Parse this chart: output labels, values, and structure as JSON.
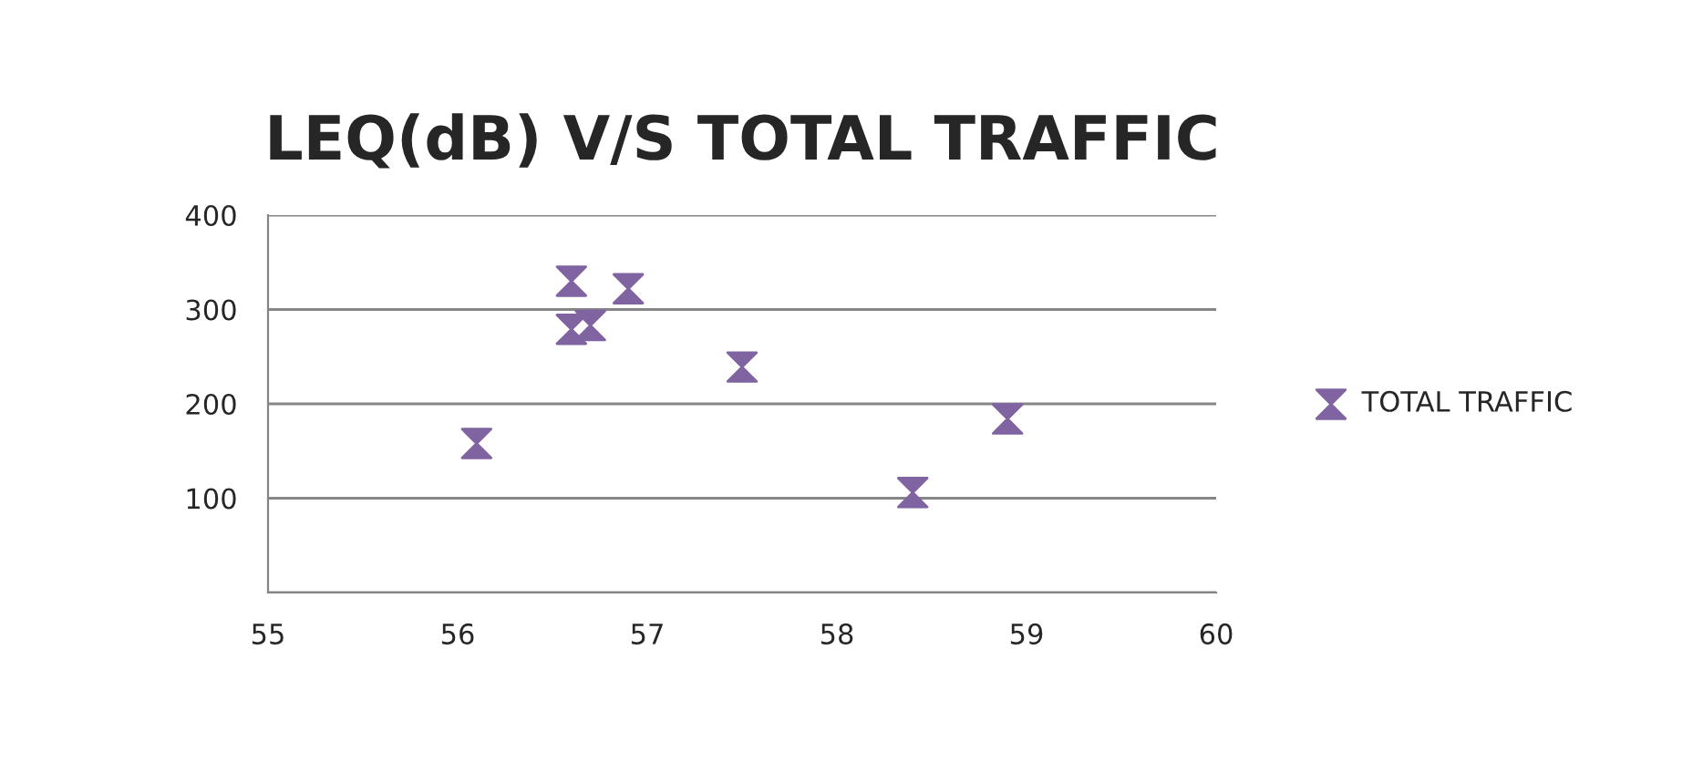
{
  "chart_data": {
    "type": "scatter",
    "title": "LEQ(dB) V/S TOTAL TRAFFIC",
    "x": [
      56.1,
      56.6,
      56.6,
      56.7,
      56.9,
      57.5,
      58.4,
      58.9
    ],
    "series": [
      {
        "name": "TOTAL TRAFFIC",
        "color": "#8064a2",
        "values": [
          158,
          330,
          279,
          283,
          322,
          239,
          106,
          184
        ]
      }
    ],
    "xlim": [
      55,
      60
    ],
    "xticks": [
      55,
      56,
      57,
      58,
      59,
      60
    ],
    "ylim": [
      0,
      400
    ],
    "yticks": [
      {
        "value": 0,
        "label": null
      },
      100,
      200,
      300,
      400
    ],
    "grid": "y",
    "legend": "right"
  }
}
